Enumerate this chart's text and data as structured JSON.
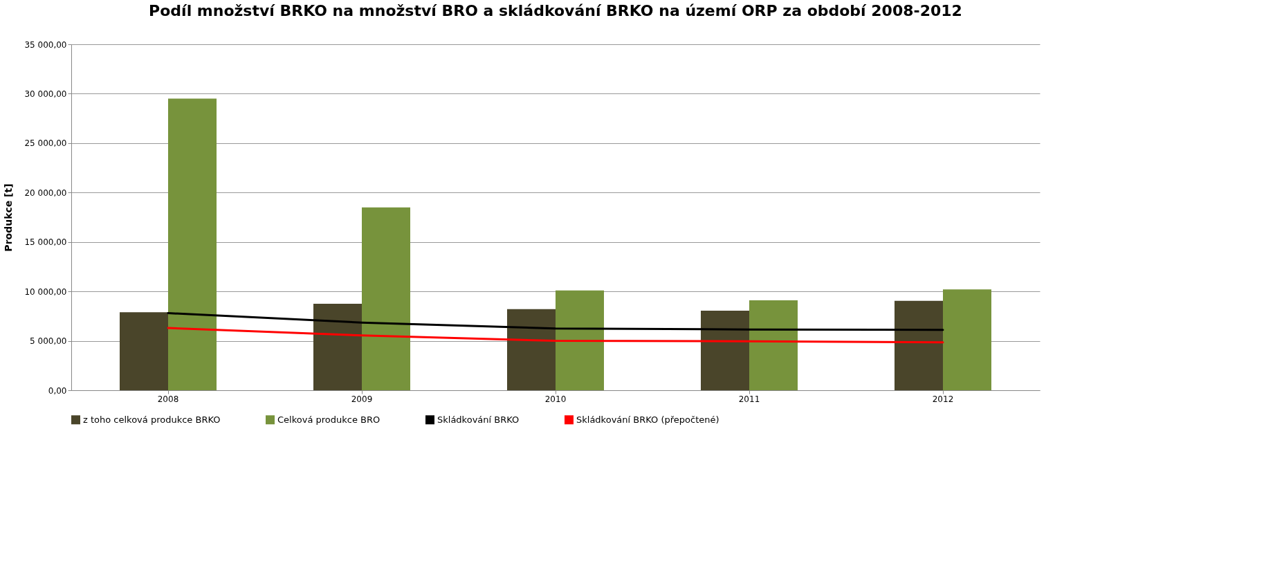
{
  "chart_data": {
    "type": "bar",
    "title": "Podíl množství BRKO na množství BRO a skládkování BRKO na území ORP za období 2008-2012",
    "ylabel": "Produkce [t]",
    "categories": [
      "2008",
      "2009",
      "2010",
      "2011",
      "2012"
    ],
    "series": [
      {
        "name": "z toho celková produkce BRKO",
        "color": "#4a452a",
        "values": [
          7900,
          8750,
          8200,
          8050,
          9050
        ]
      },
      {
        "name": "Celková produkce BRO",
        "color": "#77933c",
        "values": [
          29500,
          18500,
          10100,
          9100,
          10200
        ]
      },
      {
        "name": "Skládkování BRKO",
        "type": "line",
        "color": "#000000",
        "values": [
          7800,
          6850,
          6250,
          6150,
          6100
        ]
      },
      {
        "name": "Skládkování BRKO (přepočtené)",
        "type": "line",
        "color": "#ff0000",
        "values": [
          6300,
          5550,
          5000,
          4950,
          4850
        ]
      }
    ],
    "ylim": [
      0,
      35000
    ],
    "yticks": [
      {
        "value": 0,
        "label": "0,00"
      },
      {
        "value": 5000,
        "label": "5 000,00"
      },
      {
        "value": 10000,
        "label": "10 000,00"
      },
      {
        "value": 15000,
        "label": "15 000,00"
      },
      {
        "value": 20000,
        "label": "20 000,00"
      },
      {
        "value": 25000,
        "label": "25 000,00"
      },
      {
        "value": 30000,
        "label": "30 000,00"
      },
      {
        "value": 35000,
        "label": "35 000,00"
      }
    ],
    "grid": "y",
    "legend": "bottom"
  }
}
